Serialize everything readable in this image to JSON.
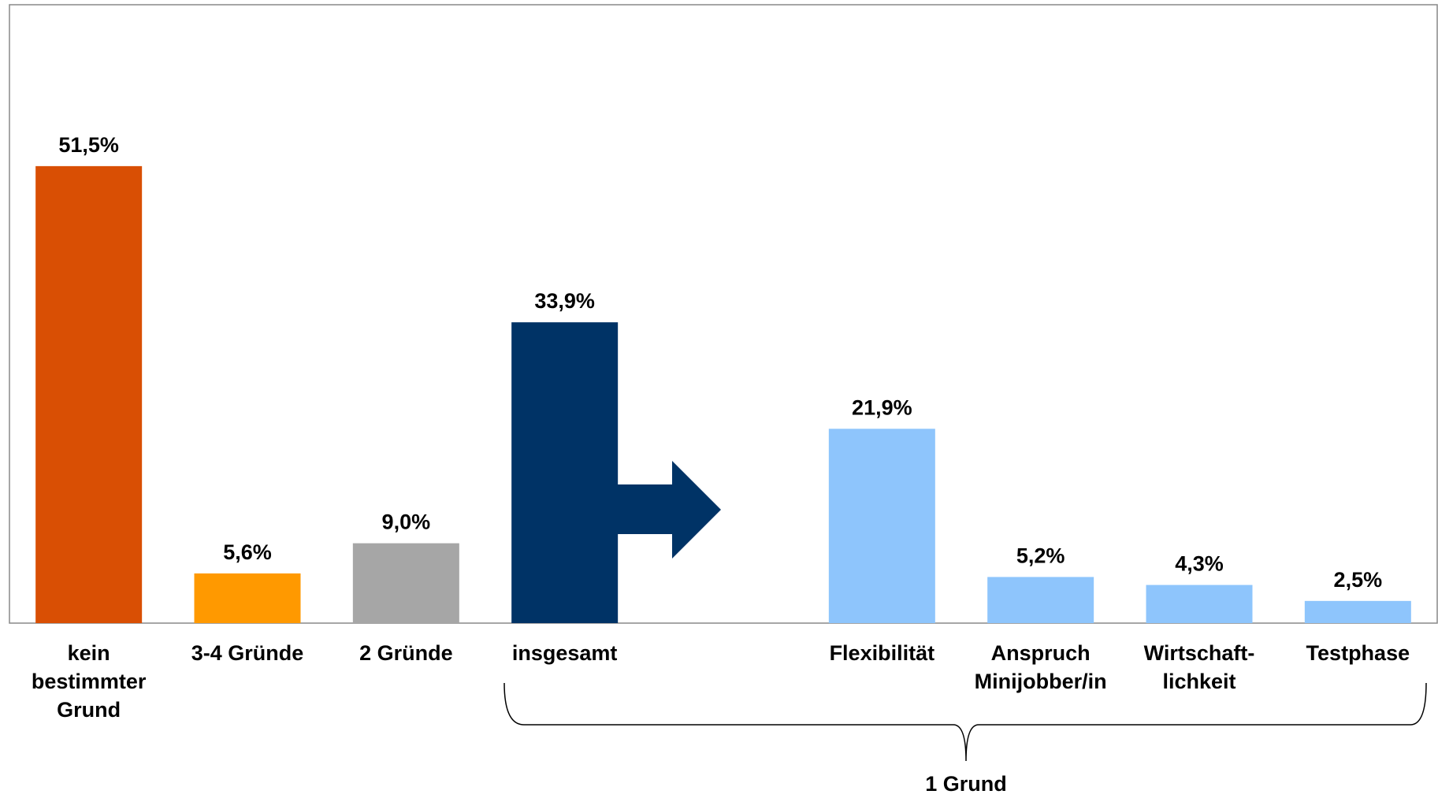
{
  "chart_data": {
    "type": "bar",
    "categories": [
      "kein\nbestimmter\nGrund",
      "3-4 Gründe",
      "2 Gründe",
      "insgesamt",
      null,
      "Flexibilität",
      "Anspruch\nMinijobber/in",
      "Wirtschaft-\nlichkeit",
      "Testphase"
    ],
    "values": [
      51.5,
      5.6,
      9.0,
      33.9,
      null,
      21.9,
      5.2,
      4.3,
      2.5
    ],
    "value_labels": [
      "51,5%",
      "5,6%",
      "9,0%",
      "33,9%",
      null,
      "21,9%",
      "5,2%",
      "4,3%",
      "2,5%"
    ],
    "colors": [
      "#d94f04",
      "#ff9900",
      "#a6a6a6",
      "#003366",
      null,
      "#8ec5fc",
      "#8ec5fc",
      "#8ec5fc",
      "#8ec5fc"
    ],
    "annotation": "1 Grund"
  }
}
